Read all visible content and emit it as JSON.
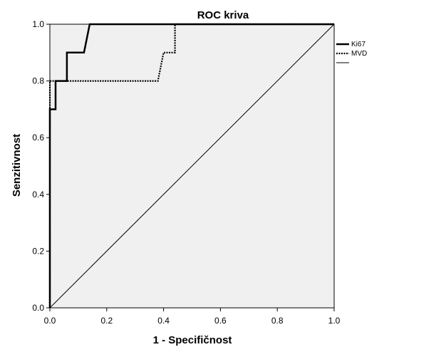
{
  "chart_data": {
    "type": "line",
    "title": "ROC kriva",
    "xlabel": "1 - Specifičnost",
    "ylabel": "Senzitivnost",
    "xlim": [
      0,
      1
    ],
    "ylim": [
      0,
      1
    ],
    "xticks": [
      "0.0",
      "0.2",
      "0.4",
      "0.6",
      "0.8",
      "1.0"
    ],
    "yticks": [
      "0.0",
      "0.2",
      "0.4",
      "0.6",
      "0.8",
      "1.0"
    ],
    "legend_position": "right",
    "plot_background": "#f0f0f0",
    "series": [
      {
        "name": "Ki67",
        "style": "solid",
        "color": "#000000",
        "x": [
          0.0,
          0.0,
          0.0,
          0.02,
          0.02,
          0.06,
          0.06,
          0.12,
          0.14,
          1.0
        ],
        "y": [
          0.0,
          0.6,
          0.7,
          0.7,
          0.8,
          0.8,
          0.9,
          0.9,
          1.0,
          1.0
        ]
      },
      {
        "name": "MVD",
        "style": "dotted",
        "color": "#000000",
        "x": [
          0.0,
          0.0,
          0.38,
          0.4,
          0.44,
          0.44,
          1.0
        ],
        "y": [
          0.0,
          0.8,
          0.8,
          0.9,
          0.9,
          1.0,
          1.0
        ]
      },
      {
        "name": "",
        "style": "thin",
        "color": "#000000",
        "x": [
          0.0,
          1.0
        ],
        "y": [
          0.0,
          1.0
        ]
      }
    ]
  }
}
